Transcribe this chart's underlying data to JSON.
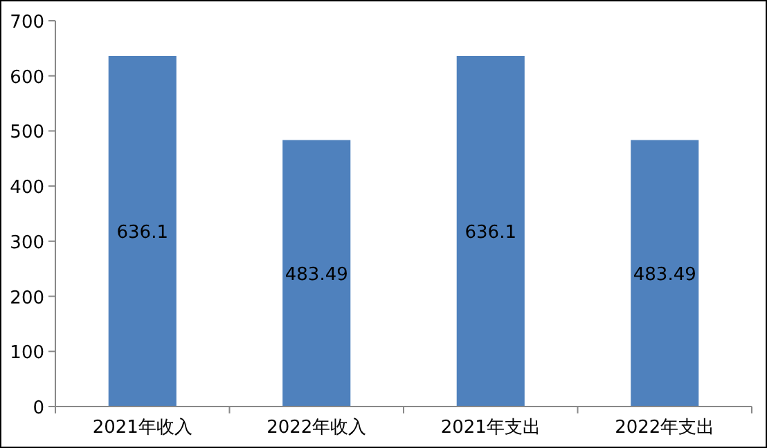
{
  "chart_data": {
    "type": "bar",
    "categories": [
      "2021年收入",
      "2022年收入",
      "2021年支出",
      "2022年支出"
    ],
    "values": [
      636.1,
      483.49,
      636.1,
      483.49
    ],
    "color": "#4f81bd",
    "ylim": [
      0,
      700
    ],
    "yticks": [
      0,
      100,
      200,
      300,
      400,
      500,
      600,
      700
    ],
    "data_labels": true
  }
}
